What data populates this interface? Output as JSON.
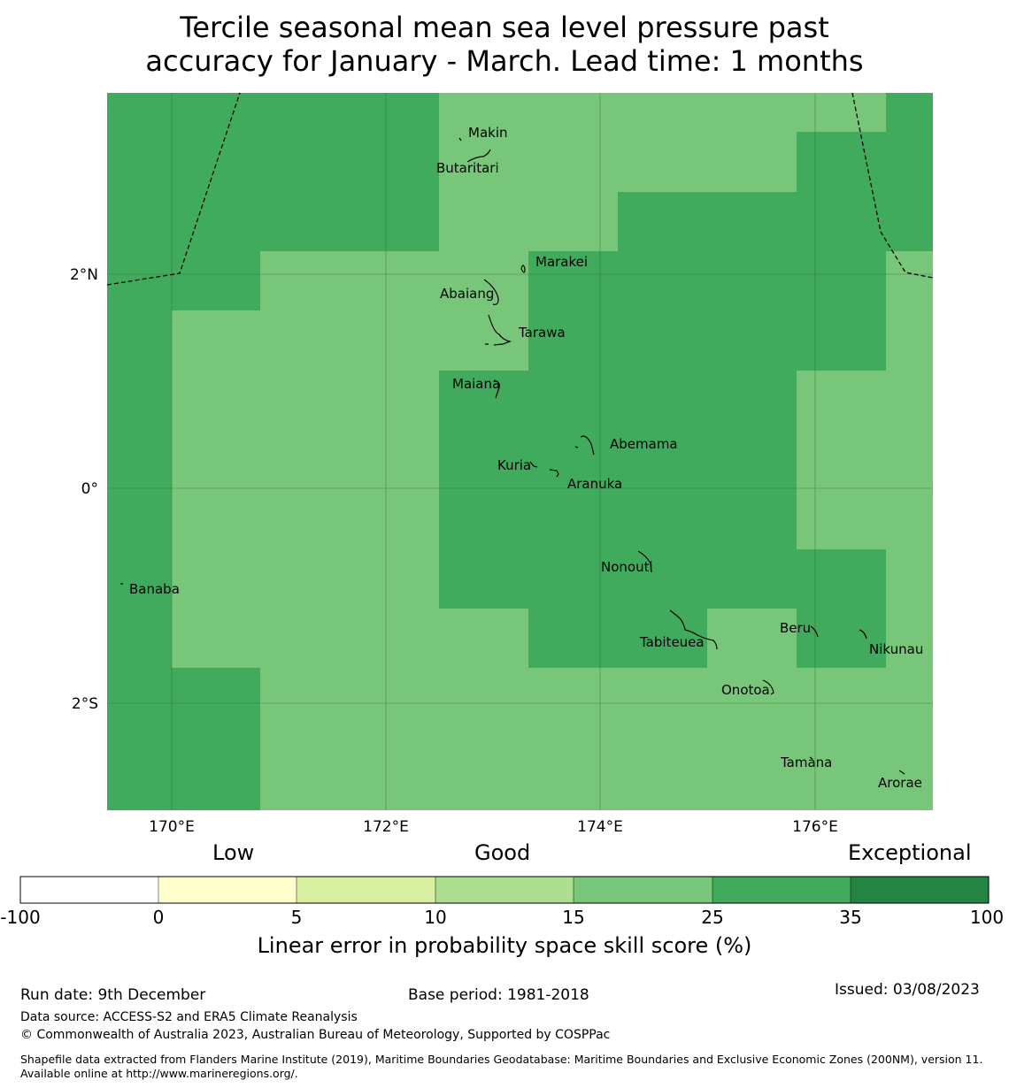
{
  "title_line1": "Tercile seasonal mean sea level pressure past",
  "title_line2": "accuracy for January - March. Lead time: 1 months",
  "map": {
    "lon_labels": [
      "170°E",
      "172°E",
      "174°E",
      "176°E"
    ],
    "lat_labels": [
      "2°N",
      "0°",
      "2°S"
    ],
    "places": [
      "Makin",
      "Butaritari",
      "Marakei",
      "Abaiang",
      "Tarawa",
      "Maiana",
      "Abemama",
      "Kuria",
      "Aranuka",
      "Nonouti",
      "Banaba",
      "Beru",
      "Tabiteuea",
      "Nikunau",
      "Onotoa",
      "Tamana",
      "Arorae"
    ],
    "colors": {
      "band_15_25": "#78c679",
      "band_25_35": "#41ab5d"
    }
  },
  "colorbar": {
    "category_labels": [
      "Low",
      "Good",
      "Exceptional"
    ],
    "ticks": [
      "-100",
      "0",
      "5",
      "10",
      "15",
      "25",
      "35",
      "100"
    ],
    "colors": [
      "#ffffff",
      "#ffffcc",
      "#d9f0a3",
      "#addd8e",
      "#78c679",
      "#41ab5d",
      "#238443"
    ],
    "label": "Linear error in probability space skill score (%)"
  },
  "footer": {
    "run_date": "Run date: 9th December",
    "base_period": "Base period: 1981-2018",
    "issued": "Issued: 03/08/2023",
    "data_source": "Data source: ACCESS-S2 and ERA5 Climate Reanalysis",
    "copyright": "© Commonwealth of Australia 2023, Australian Bureau of Meteorology, Supported by COSPPac",
    "shapefile": "Shapefile data extracted from Flanders Marine Institute (2019), Maritime Boundaries Geodatabase: Maritime Boundaries and Exclusive Economic Zones (200NM), version 11. Available online at http://www.marineregions.org/."
  }
}
